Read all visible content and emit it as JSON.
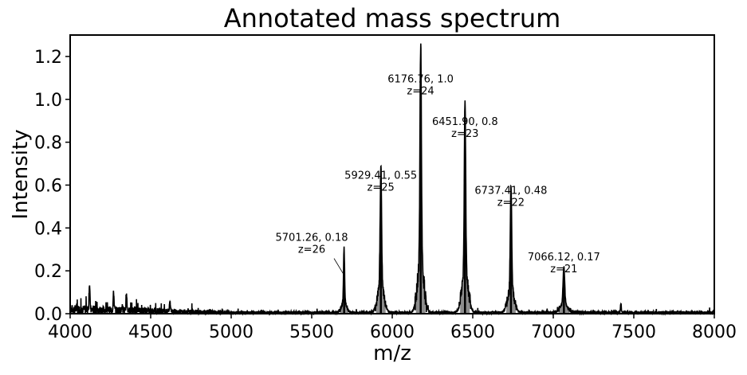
{
  "chart_data": {
    "type": "line",
    "title": "Annotated mass spectrum",
    "xlabel": "m/z",
    "ylabel": "Intensity",
    "xlim": [
      4000,
      8000
    ],
    "ylim": [
      0,
      1.3
    ],
    "xticks": [
      4000,
      4500,
      5000,
      5500,
      6000,
      6500,
      7000,
      7500,
      8000
    ],
    "xtick_labels": [
      "4000",
      "4500",
      "5000",
      "5500",
      "6000",
      "6500",
      "7000",
      "7500",
      "8000"
    ],
    "yticks": [
      0.0,
      0.2,
      0.4,
      0.6,
      0.8,
      1.0,
      1.2
    ],
    "ytick_labels": [
      "0.0",
      "0.2",
      "0.4",
      "0.6",
      "0.8",
      "1.0",
      "1.2"
    ],
    "grid": false,
    "line_color": "#000000",
    "fill_color": "#808080",
    "peaks": [
      {
        "mz": 5701.26,
        "intensity": 0.18,
        "charge": 26,
        "width": 10
      },
      {
        "mz": 5929.41,
        "intensity": 0.55,
        "charge": 25,
        "width": 12
      },
      {
        "mz": 6176.76,
        "intensity": 1.0,
        "charge": 24,
        "width": 12
      },
      {
        "mz": 6451.9,
        "intensity": 0.8,
        "charge": 23,
        "width": 12
      },
      {
        "mz": 6737.41,
        "intensity": 0.48,
        "charge": 22,
        "width": 12
      },
      {
        "mz": 7066.12,
        "intensity": 0.17,
        "charge": 21,
        "width": 14
      }
    ],
    "minor_peaks": [
      {
        "mz": 4120,
        "intensity": 0.12
      },
      {
        "mz": 4270,
        "intensity": 0.08
      },
      {
        "mz": 4350,
        "intensity": 0.07
      },
      {
        "mz": 4620,
        "intensity": 0.05
      },
      {
        "mz": 5700,
        "intensity": 0.08
      },
      {
        "mz": 7420,
        "intensity": 0.04
      }
    ],
    "annotations": [
      {
        "line1": "5701.26, 0.18",
        "line2": "z=26",
        "mz": 5701.26,
        "intensity": 0.18,
        "text_mz": 5500,
        "text_y": 0.28,
        "leader": true
      },
      {
        "line1": "5929.41, 0.55",
        "line2": "z=25",
        "mz": 5929.41,
        "intensity": 0.55,
        "text_mz": 5929,
        "text_y": 0.57,
        "leader": false
      },
      {
        "line1": "6176.76, 1.0",
        "line2": "z=24",
        "mz": 6176.76,
        "intensity": 1.0,
        "text_mz": 6176,
        "text_y": 1.02,
        "leader": false
      },
      {
        "line1": "6451.90, 0.8",
        "line2": "z=23",
        "mz": 6451.9,
        "intensity": 0.8,
        "text_mz": 6452,
        "text_y": 0.82,
        "leader": false
      },
      {
        "line1": "6737.41, 0.48",
        "line2": "z=22",
        "mz": 6737.41,
        "intensity": 0.48,
        "text_mz": 6737,
        "text_y": 0.5,
        "leader": false
      },
      {
        "line1": "7066.12, 0.17",
        "line2": "z=21",
        "mz": 7066.12,
        "intensity": 0.17,
        "text_mz": 7066,
        "text_y": 0.19,
        "leader": false
      }
    ]
  }
}
